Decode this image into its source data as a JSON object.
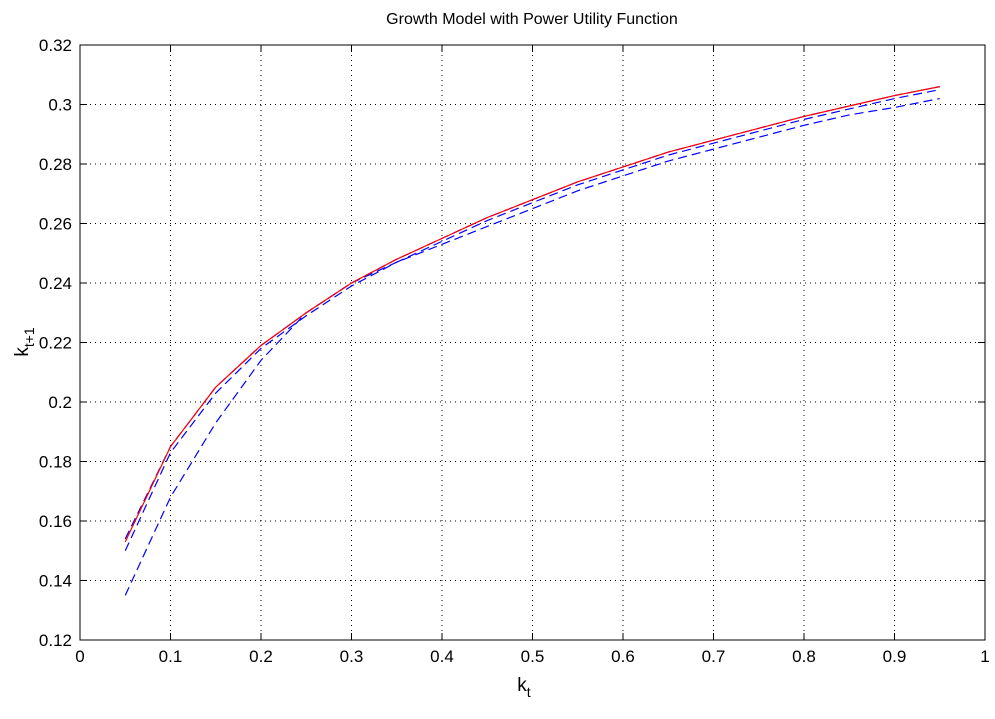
{
  "chart_data": {
    "type": "line",
    "title": "Growth Model with Power Utility Function",
    "xlabel": {
      "base": "k",
      "sub": "t"
    },
    "ylabel": {
      "base": "k",
      "sub": "t+1"
    },
    "xlim": [
      0,
      1
    ],
    "ylim": [
      0.12,
      0.32
    ],
    "xticks": [
      0,
      0.1,
      0.2,
      0.3,
      0.4,
      0.5,
      0.6,
      0.7,
      0.8,
      0.9,
      1
    ],
    "xtick_labels": [
      "0",
      "0.1",
      "0.2",
      "0.3",
      "0.4",
      "0.5",
      "0.6",
      "0.7",
      "0.8",
      "0.9",
      "1"
    ],
    "yticks": [
      0.12,
      0.14,
      0.16,
      0.18,
      0.2,
      0.22,
      0.24,
      0.26,
      0.28,
      0.3,
      0.32
    ],
    "ytick_labels": [
      "0.12",
      "0.14",
      "0.16",
      "0.18",
      "0.2",
      "0.22",
      "0.24",
      "0.26",
      "0.28",
      "0.3",
      "0.32"
    ],
    "grid": true,
    "series": [
      {
        "style": "solid",
        "color": "#ff0000",
        "x": [
          0.05,
          0.1,
          0.15,
          0.2,
          0.25,
          0.3,
          0.35,
          0.4,
          0.45,
          0.5,
          0.55,
          0.6,
          0.65,
          0.7,
          0.75,
          0.8,
          0.85,
          0.9,
          0.95
        ],
        "y": [
          0.153,
          0.185,
          0.205,
          0.219,
          0.23,
          0.24,
          0.248,
          0.255,
          0.262,
          0.268,
          0.274,
          0.279,
          0.284,
          0.288,
          0.292,
          0.296,
          0.2995,
          0.303,
          0.306
        ]
      },
      {
        "style": "dashed",
        "color": "#0000ff",
        "x": [
          0.05,
          0.1,
          0.15,
          0.2,
          0.25,
          0.3,
          0.35,
          0.4,
          0.45,
          0.5,
          0.55,
          0.6,
          0.65,
          0.7,
          0.75,
          0.8,
          0.85,
          0.9,
          0.95
        ],
        "y": [
          0.154,
          0.185,
          0.205,
          0.219,
          0.23,
          0.24,
          0.248,
          0.255,
          0.262,
          0.268,
          0.274,
          0.279,
          0.284,
          0.288,
          0.292,
          0.296,
          0.2995,
          0.303,
          0.306
        ]
      },
      {
        "style": "dashed",
        "color": "#0000ff",
        "x": [
          0.05,
          0.1,
          0.15,
          0.2,
          0.25,
          0.3,
          0.35,
          0.4,
          0.45,
          0.5,
          0.55,
          0.6,
          0.65,
          0.7,
          0.75,
          0.8,
          0.85,
          0.9,
          0.95
        ],
        "y": [
          0.15,
          0.183,
          0.203,
          0.218,
          0.229,
          0.239,
          0.247,
          0.254,
          0.261,
          0.267,
          0.273,
          0.278,
          0.283,
          0.287,
          0.291,
          0.295,
          0.2985,
          0.302,
          0.305
        ]
      },
      {
        "style": "dashed",
        "color": "#0000ff",
        "x": [
          0.05,
          0.1,
          0.15,
          0.2,
          0.25,
          0.3,
          0.35,
          0.4,
          0.45,
          0.5,
          0.55,
          0.6,
          0.65,
          0.7,
          0.75,
          0.8,
          0.85,
          0.9,
          0.95
        ],
        "y": [
          0.135,
          0.168,
          0.193,
          0.214,
          0.23,
          0.24,
          0.247,
          0.253,
          0.259,
          0.265,
          0.271,
          0.276,
          0.281,
          0.285,
          0.289,
          0.293,
          0.2965,
          0.299,
          0.302
        ]
      }
    ]
  }
}
